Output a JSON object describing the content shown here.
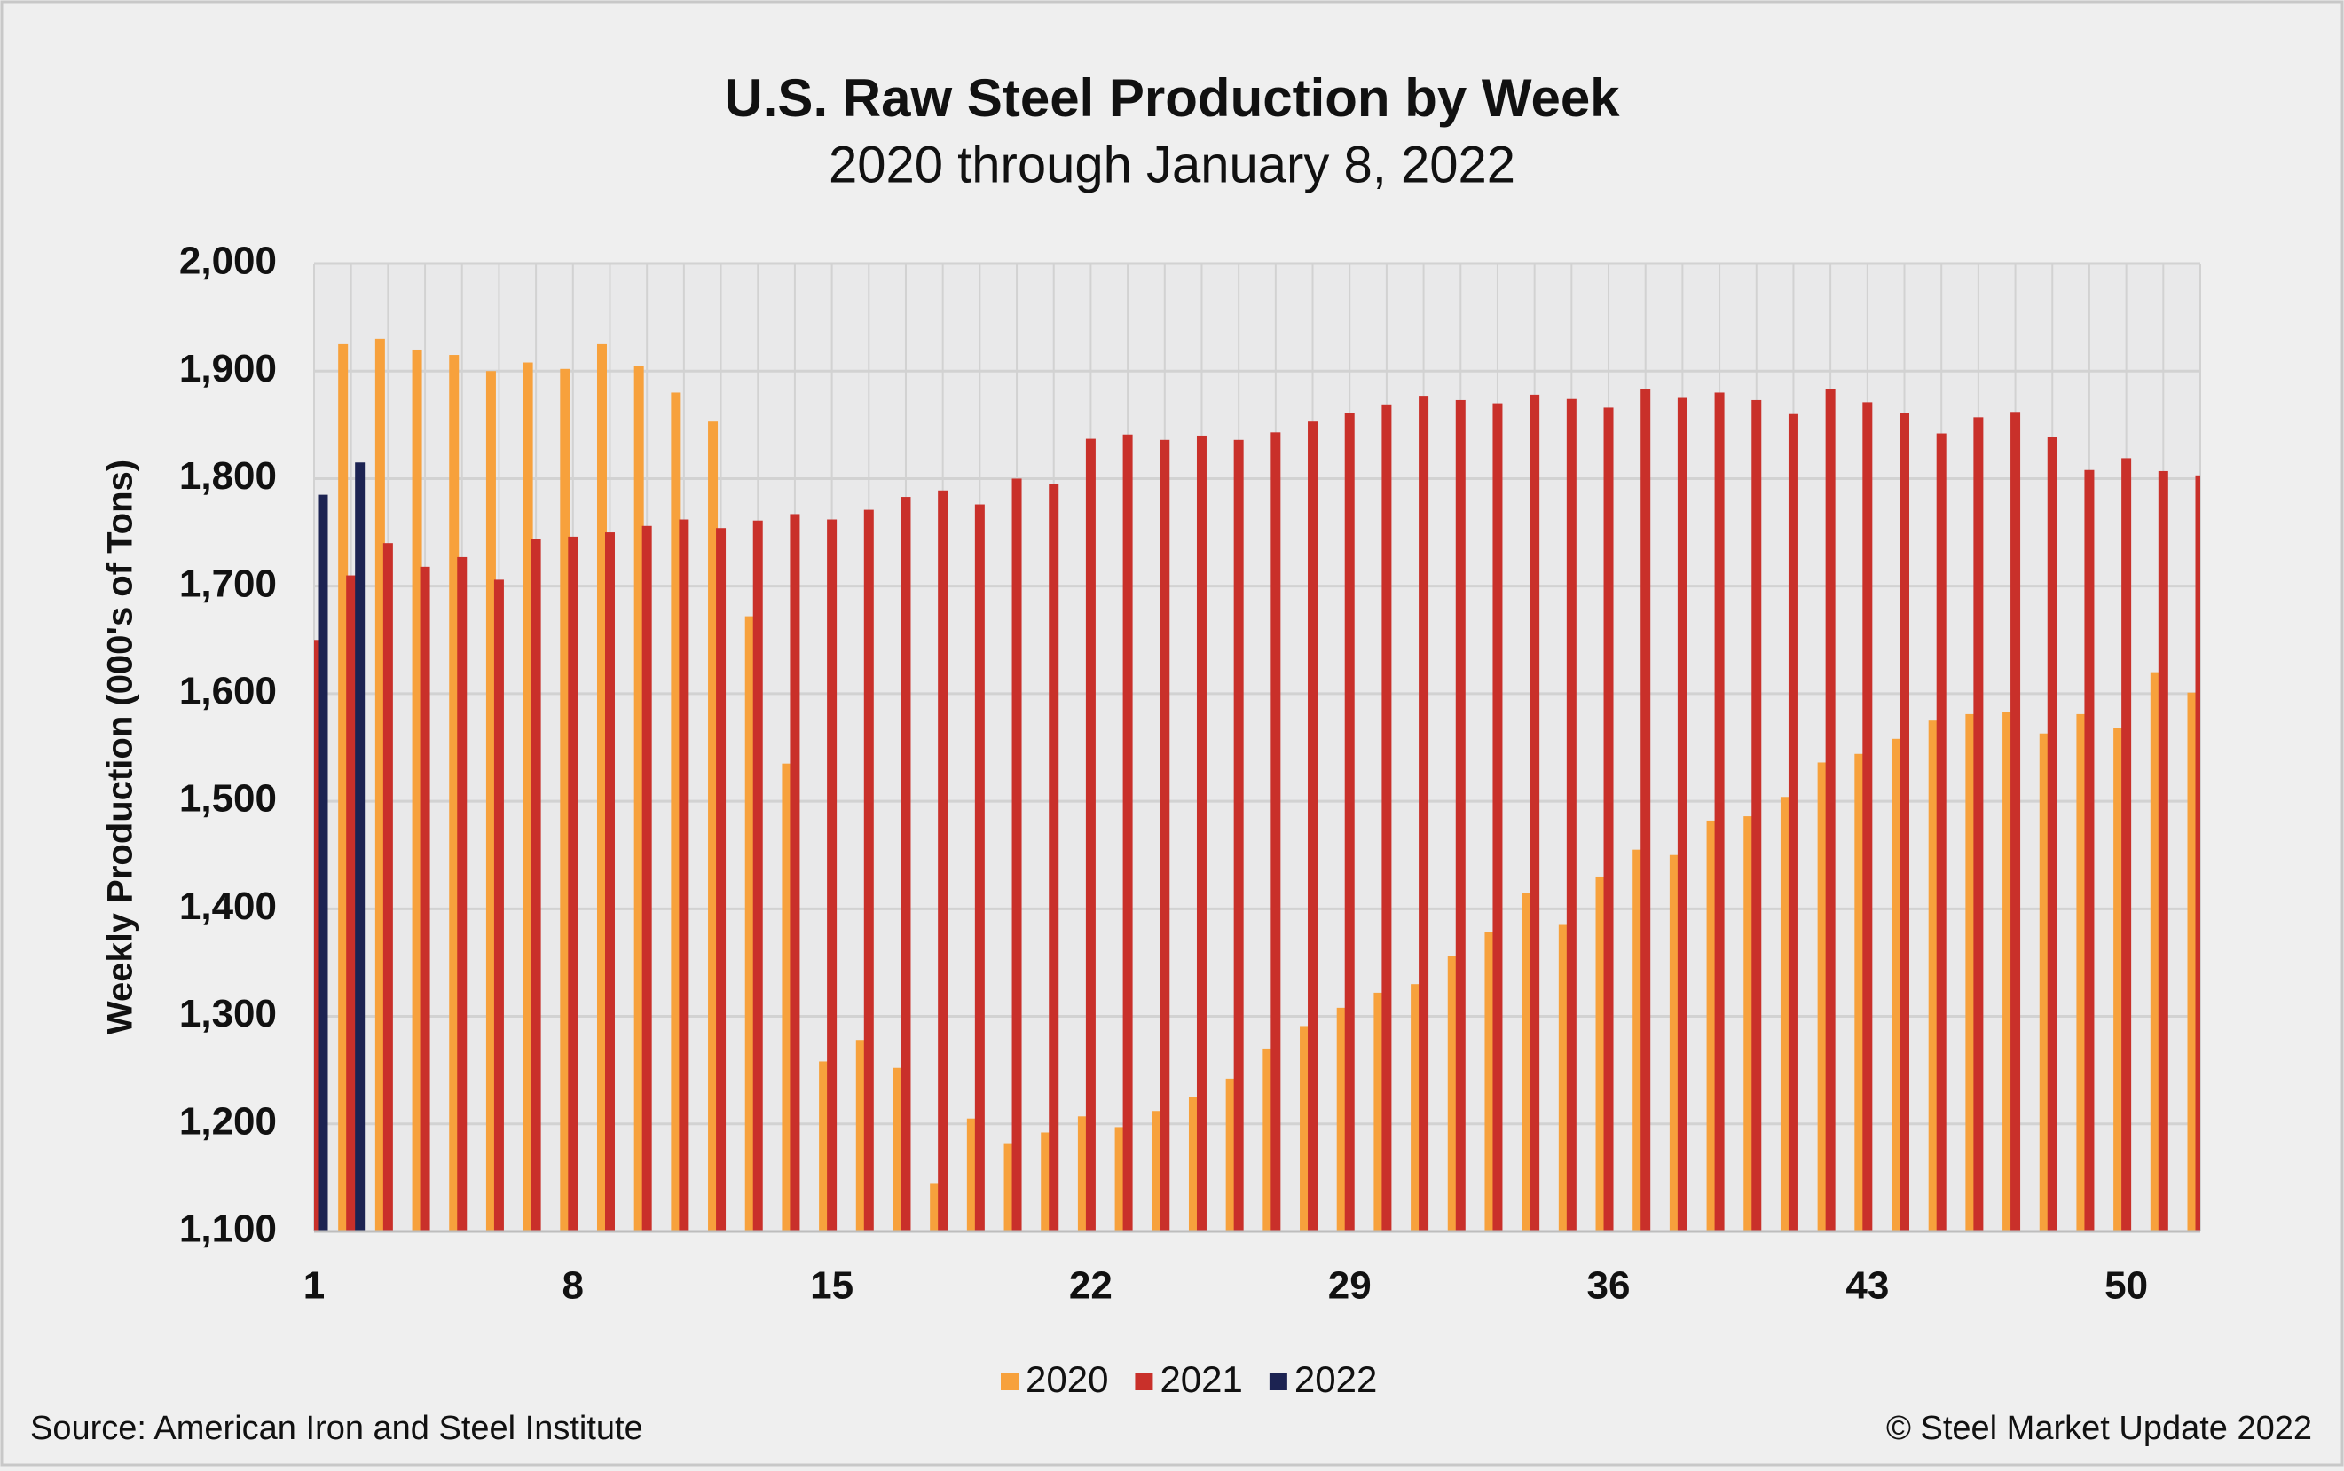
{
  "chart_data": {
    "type": "bar",
    "title": "U.S. Raw Steel Production by Week",
    "subtitle": "2020 through January 8, 2022",
    "y_label": "Weekly Production (000's of Tons)",
    "source": "Source: American Iron and Steel Institute",
    "copyright": "© Steel Market Update 2022",
    "categories": [
      "1",
      null,
      null,
      null,
      null,
      null,
      null,
      "8",
      null,
      null,
      null,
      null,
      null,
      null,
      "15",
      null,
      null,
      null,
      null,
      null,
      null,
      "22",
      null,
      null,
      null,
      null,
      null,
      null,
      "29",
      null,
      null,
      null,
      null,
      null,
      null,
      "36",
      null,
      null,
      null,
      null,
      null,
      null,
      "43",
      null,
      null,
      null,
      null,
      null,
      null,
      "50",
      null,
      null
    ],
    "series": [
      {
        "name": "2020",
        "color": "#f7a13c",
        "values": [
          null,
          1925,
          1930,
          1920,
          1915,
          1900,
          1908,
          1902,
          1925,
          1905,
          1880,
          1853,
          1672,
          1535,
          1258,
          1278,
          1252,
          1145,
          1205,
          1182,
          1192,
          1207,
          1197,
          1212,
          1225,
          1242,
          1270,
          1291,
          1308,
          1322,
          1330,
          1356,
          1378,
          1415,
          1385,
          1430,
          1455,
          1450,
          1482,
          1486,
          1504,
          1536,
          1544,
          1558,
          1575,
          1581,
          1583,
          1563,
          1581,
          1568,
          1620,
          1601
        ]
      },
      {
        "name": "2021",
        "color": "#c9302a",
        "values": [
          1650,
          1710,
          1740,
          1718,
          1727,
          1706,
          1744,
          1746,
          1750,
          1756,
          1762,
          1754,
          1761,
          1767,
          1762,
          1771,
          1783,
          1789,
          1776,
          1800,
          1795,
          1837,
          1841,
          1836,
          1840,
          1836,
          1843,
          1853,
          1861,
          1869,
          1877,
          1873,
          1870,
          1878,
          1874,
          1866,
          1883,
          1875,
          1880,
          1873,
          1860,
          1883,
          1871,
          1861,
          1842,
          1857,
          1862,
          1839,
          1808,
          1819,
          1807,
          1803
        ]
      },
      {
        "name": "2022",
        "color": "#1c2352",
        "values": [
          1785,
          1815,
          null,
          null,
          null,
          null,
          null,
          null,
          null,
          null,
          null,
          null,
          null,
          null,
          null,
          null,
          null,
          null,
          null,
          null,
          null,
          null,
          null,
          null,
          null,
          null,
          null,
          null,
          null,
          null,
          null,
          null,
          null,
          null,
          null,
          null,
          null,
          null,
          null,
          null,
          null,
          null,
          null,
          null,
          null,
          null,
          null,
          null,
          null,
          null,
          null,
          null
        ]
      }
    ],
    "ylim": [
      1100,
      2000
    ],
    "yticks": [
      {
        "value": 1100,
        "label": "1,100"
      },
      {
        "value": 1200,
        "label": "1,200"
      },
      {
        "value": 1300,
        "label": "1,300"
      },
      {
        "value": 1400,
        "label": "1,400"
      },
      {
        "value": 1500,
        "label": "1,500"
      },
      {
        "value": 1600,
        "label": "1,600"
      },
      {
        "value": 1700,
        "label": "1,700"
      },
      {
        "value": 1800,
        "label": "1,800"
      },
      {
        "value": 1900,
        "label": "1,900"
      },
      {
        "value": 2000,
        "label": "2,000"
      }
    ],
    "grid": true,
    "legend": "bottom"
  }
}
